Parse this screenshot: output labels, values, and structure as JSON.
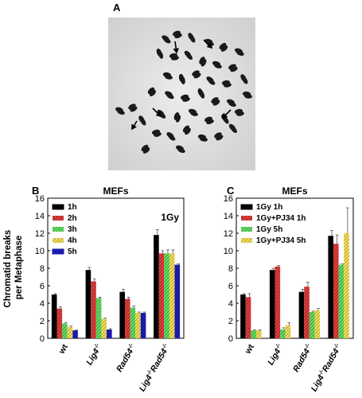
{
  "panel_a": {
    "label": "A",
    "image": "metaphase chromosome spread micrograph with arrows marking chromatid breaks"
  },
  "chart_data": [
    {
      "panel_label": "B",
      "type": "bar",
      "title": "MEFs",
      "annotation": "1Gy",
      "ylabel": "Chromatid breaks\nper Metaphase",
      "ylim": [
        0,
        16
      ],
      "yticks": [
        0,
        2,
        4,
        6,
        8,
        10,
        12,
        14,
        16
      ],
      "categories": [
        "wt",
        "Lig4",
        "Rad54",
        "Lig4 Rad54"
      ],
      "category_superscripts": [
        "",
        "-/-",
        "-/-",
        "-/- / -/-"
      ],
      "legend_position": "top-left",
      "series": [
        {
          "name": "1h",
          "color": "#000000",
          "pattern": "solid",
          "values": [
            5.0,
            7.8,
            5.3,
            11.8
          ],
          "errors": [
            0.1,
            0.3,
            0.3,
            0.6
          ]
        },
        {
          "name": "2h",
          "color": "#cc2020",
          "pattern": "hatch",
          "values": [
            3.4,
            6.5,
            4.5,
            9.7
          ],
          "errors": [
            0.2,
            0.3,
            0.2,
            0.3
          ]
        },
        {
          "name": "3h",
          "color": "#33bb33",
          "pattern": "hatch",
          "values": [
            1.7,
            4.6,
            3.5,
            9.7
          ],
          "errors": [
            0.1,
            0.1,
            0.2,
            0.4
          ]
        },
        {
          "name": "4h",
          "color": "#d8c830",
          "pattern": "hatch",
          "values": [
            1.3,
            2.2,
            2.9,
            9.7
          ],
          "errors": [
            0.1,
            0.1,
            0.1,
            0.4
          ]
        },
        {
          "name": "5h",
          "color": "#1a1aaa",
          "pattern": "solid",
          "values": [
            0.9,
            1.0,
            2.9,
            8.4
          ],
          "errors": [
            0.05,
            0.1,
            0.1,
            0.1
          ]
        }
      ]
    },
    {
      "panel_label": "C",
      "type": "bar",
      "title": "MEFs",
      "ylim": [
        0,
        16
      ],
      "yticks": [
        0,
        2,
        4,
        6,
        8,
        10,
        12,
        14,
        16
      ],
      "categories": [
        "wt",
        "Lig4",
        "Rad54",
        "Lig4 Rad54"
      ],
      "category_superscripts": [
        "",
        "-/-",
        "-/-",
        "-/- / -/-"
      ],
      "legend_position": "top-left",
      "series": [
        {
          "name": "1Gy 1h",
          "color": "#000000",
          "pattern": "solid",
          "values": [
            5.0,
            7.8,
            5.3,
            11.7
          ],
          "errors": [
            0.1,
            0.2,
            0.3,
            0.6
          ]
        },
        {
          "name": "1Gy+PJ34 1h",
          "color": "#cc2020",
          "pattern": "hatch",
          "values": [
            4.7,
            8.2,
            5.9,
            10.8
          ],
          "errors": [
            0.4,
            0.1,
            0.5,
            1.0
          ]
        },
        {
          "name": "1Gy 5h",
          "color": "#33bb33",
          "pattern": "hatch",
          "values": [
            0.9,
            1.0,
            3.0,
            8.4
          ],
          "errors": [
            0.05,
            0.2,
            0.1,
            0.1
          ]
        },
        {
          "name": "1Gy+PJ34 5h",
          "color": "#d8c830",
          "pattern": "hatch",
          "values": [
            0.9,
            1.5,
            3.2,
            12.0
          ],
          "errors": [
            0.05,
            0.3,
            0.2,
            2.9
          ]
        }
      ]
    }
  ]
}
